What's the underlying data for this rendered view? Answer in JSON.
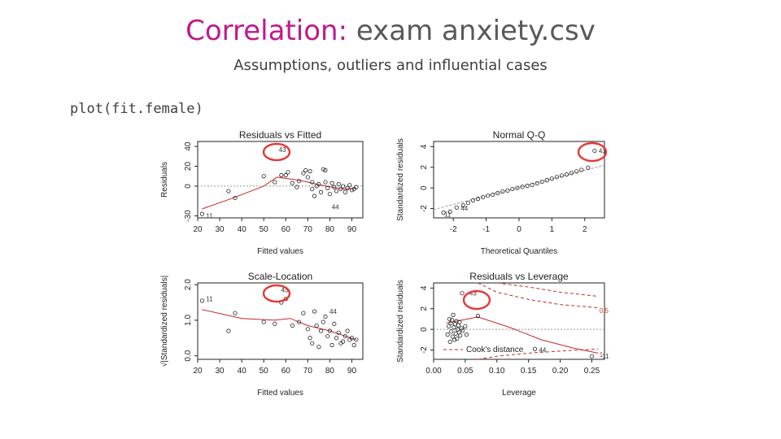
{
  "slide": {
    "title_prefix": "Correlation:",
    "title_rest": " exam anxiety.csv",
    "subtitle": "Assumptions, outliers and influential cases",
    "code": "plot(fit.female)"
  },
  "colors": {
    "title_accent": "#c0198e",
    "fit_line": "#c62828",
    "highlight": "#e53935",
    "refline": "#999999"
  },
  "chart_data": [
    {
      "type": "scatter",
      "title": "Residuals vs Fitted",
      "xlabel": "Fitted values",
      "ylabel": "Residuals",
      "xlim": [
        20,
        95
      ],
      "ylim": [
        -32,
        45
      ],
      "xticks": [
        20,
        30,
        40,
        50,
        60,
        70,
        80,
        90
      ],
      "yticks": [
        -30,
        0,
        20,
        40
      ],
      "points": [
        [
          22,
          -28
        ],
        [
          34,
          -5
        ],
        [
          37,
          -12
        ],
        [
          50,
          10
        ],
        [
          55,
          4
        ],
        [
          58,
          11
        ],
        [
          60,
          11
        ],
        [
          61,
          14
        ],
        [
          63,
          3
        ],
        [
          65,
          -1
        ],
        [
          66,
          5
        ],
        [
          68,
          13
        ],
        [
          69,
          16
        ],
        [
          70,
          9
        ],
        [
          71,
          15
        ],
        [
          72,
          4
        ],
        [
          72,
          -3
        ],
        [
          74,
          0
        ],
        [
          75,
          2
        ],
        [
          76,
          -6
        ],
        [
          77,
          17
        ],
        [
          78,
          4
        ],
        [
          79,
          -2
        ],
        [
          80,
          -8
        ],
        [
          81,
          3
        ],
        [
          82,
          -1
        ],
        [
          83,
          -5
        ],
        [
          84,
          2
        ],
        [
          85,
          -3
        ],
        [
          86,
          0
        ],
        [
          87,
          -6
        ],
        [
          88,
          -2
        ],
        [
          89,
          1
        ],
        [
          90,
          -4
        ],
        [
          91,
          -3
        ],
        [
          92,
          -1
        ],
        [
          78,
          16
        ],
        [
          73,
          -10
        ]
      ],
      "smooth": [
        [
          22,
          -23
        ],
        [
          36,
          -12
        ],
        [
          50,
          0
        ],
        [
          56,
          9
        ],
        [
          66,
          6
        ],
        [
          76,
          1
        ],
        [
          86,
          -3
        ],
        [
          92,
          -2
        ]
      ],
      "refline_y": 0,
      "labels": [
        {
          "text": "43",
          "x": 55,
          "y": 37
        },
        {
          "text": "11",
          "x": 22,
          "y": -30
        },
        {
          "text": "44",
          "x": 79,
          "y": -21
        }
      ]
    },
    {
      "type": "scatter",
      "title": "Normal Q-Q",
      "xlabel": "Theoretical Quantiles",
      "ylabel": "Standardized residuals",
      "xlim": [
        -2.6,
        2.6
      ],
      "ylim": [
        -2.9,
        4.5
      ],
      "xticks": [
        -2,
        -1,
        0,
        1,
        2
      ],
      "yticks": [
        -2,
        0,
        2,
        4
      ],
      "points": [
        [
          -2.3,
          -2.4
        ],
        [
          -2.1,
          -2.3
        ],
        [
          -1.9,
          -1.9
        ],
        [
          -1.7,
          -1.7
        ],
        [
          -1.55,
          -1.45
        ],
        [
          -1.4,
          -1.2
        ],
        [
          -1.25,
          -1.05
        ],
        [
          -1.1,
          -0.9
        ],
        [
          -0.95,
          -0.75
        ],
        [
          -0.8,
          -0.65
        ],
        [
          -0.65,
          -0.5
        ],
        [
          -0.5,
          -0.35
        ],
        [
          -0.35,
          -0.25
        ],
        [
          -0.2,
          -0.1
        ],
        [
          -0.05,
          0.0
        ],
        [
          0.1,
          0.1
        ],
        [
          0.25,
          0.2
        ],
        [
          0.4,
          0.3
        ],
        [
          0.55,
          0.45
        ],
        [
          0.7,
          0.6
        ],
        [
          0.85,
          0.75
        ],
        [
          1.0,
          0.9
        ],
        [
          1.15,
          1.05
        ],
        [
          1.3,
          1.2
        ],
        [
          1.45,
          1.3
        ],
        [
          1.6,
          1.45
        ],
        [
          1.75,
          1.6
        ],
        [
          1.9,
          1.75
        ],
        [
          2.1,
          1.95
        ],
        [
          2.3,
          3.6
        ]
      ],
      "refline": [
        [
          -2.6,
          -2.1
        ],
        [
          2.6,
          2.2
        ]
      ],
      "labels": [
        {
          "text": "43",
          "x": 2.3,
          "y": 3.6
        },
        {
          "text": "11",
          "x": -2.4,
          "y": -2.55
        },
        {
          "text": "44",
          "x": -1.9,
          "y": -1.95
        }
      ]
    },
    {
      "type": "scatter",
      "title": "Scale-Location",
      "xlabel": "Fitted values",
      "ylabel": "√|Standardized residuals|",
      "xlim": [
        20,
        95
      ],
      "ylim": [
        -0.1,
        2.05
      ],
      "xticks": [
        20,
        30,
        40,
        50,
        60,
        70,
        80,
        90
      ],
      "yticks": [
        0.0,
        1.0,
        2.0
      ],
      "points": [
        [
          22,
          1.55
        ],
        [
          34,
          0.7
        ],
        [
          37,
          1.2
        ],
        [
          50,
          0.95
        ],
        [
          55,
          0.9
        ],
        [
          58,
          1.5
        ],
        [
          60,
          1.6
        ],
        [
          63,
          0.85
        ],
        [
          66,
          0.95
        ],
        [
          68,
          1.2
        ],
        [
          70,
          0.75
        ],
        [
          71,
          0.5
        ],
        [
          72,
          0.35
        ],
        [
          73,
          1.25
        ],
        [
          74,
          0.85
        ],
        [
          75,
          0.25
        ],
        [
          76,
          0.7
        ],
        [
          77,
          0.95
        ],
        [
          78,
          1.1
        ],
        [
          79,
          0.55
        ],
        [
          80,
          0.7
        ],
        [
          81,
          0.3
        ],
        [
          82,
          0.9
        ],
        [
          83,
          0.5
        ],
        [
          84,
          0.65
        ],
        [
          85,
          0.35
        ],
        [
          86,
          0.4
        ],
        [
          87,
          0.55
        ],
        [
          88,
          0.7
        ],
        [
          89,
          0.45
        ],
        [
          90,
          0.5
        ],
        [
          91,
          0.3
        ],
        [
          92,
          0.45
        ]
      ],
      "smooth": [
        [
          22,
          1.3
        ],
        [
          40,
          1.05
        ],
        [
          55,
          1.0
        ],
        [
          62,
          1.05
        ],
        [
          70,
          0.85
        ],
        [
          80,
          0.7
        ],
        [
          92,
          0.45
        ]
      ],
      "labels": [
        {
          "text": "11",
          "x": 22,
          "y": 1.6
        },
        {
          "text": "43",
          "x": 56,
          "y": 1.85
        },
        {
          "text": "44",
          "x": 78,
          "y": 1.25
        }
      ]
    },
    {
      "type": "scatter",
      "title": "Residuals vs Leverage",
      "xlabel": "Leverage",
      "ylabel": "Standardized residuals",
      "xlim": [
        0,
        0.27
      ],
      "ylim": [
        -2.9,
        4.5
      ],
      "xticks": [
        0.0,
        0.05,
        0.1,
        0.15,
        0.2,
        0.25
      ],
      "xtick_labels": [
        "0.00",
        "0.05",
        "0.10",
        "0.15",
        "0.20",
        "0.25"
      ],
      "yticks": [
        -2,
        0,
        2,
        4
      ],
      "points": [
        [
          0.022,
          -0.5
        ],
        [
          0.024,
          0.3
        ],
        [
          0.025,
          1.0
        ],
        [
          0.026,
          -1.2
        ],
        [
          0.027,
          0.6
        ],
        [
          0.028,
          -0.2
        ],
        [
          0.029,
          0.9
        ],
        [
          0.03,
          -0.7
        ],
        [
          0.031,
          1.4
        ],
        [
          0.032,
          0.2
        ],
        [
          0.033,
          -1.0
        ],
        [
          0.034,
          0.5
        ],
        [
          0.035,
          -0.4
        ],
        [
          0.036,
          0.8
        ],
        [
          0.037,
          -0.9
        ],
        [
          0.038,
          0.0
        ],
        [
          0.039,
          0.4
        ],
        [
          0.04,
          -0.3
        ],
        [
          0.041,
          0.7
        ],
        [
          0.042,
          -0.6
        ],
        [
          0.044,
          0.1
        ],
        [
          0.046,
          -0.1
        ],
        [
          0.05,
          0.3
        ],
        [
          0.052,
          -0.5
        ],
        [
          0.07,
          1.3
        ],
        [
          0.16,
          -1.9
        ],
        [
          0.25,
          -2.6
        ],
        [
          0.045,
          3.5
        ]
      ],
      "smooth": [
        [
          0.02,
          0.6
        ],
        [
          0.07,
          1.2
        ],
        [
          0.12,
          0.2
        ],
        [
          0.17,
          -1.0
        ],
        [
          0.22,
          -1.8
        ],
        [
          0.26,
          -2.3
        ]
      ],
      "cook_upper": [
        [
          0.07,
          4.5
        ],
        [
          0.1,
          3.6
        ],
        [
          0.15,
          2.9
        ],
        [
          0.2,
          2.4
        ],
        [
          0.26,
          2.1
        ]
      ],
      "cook_upper2": [
        [
          0.1,
          4.5
        ],
        [
          0.15,
          4.1
        ],
        [
          0.2,
          3.6
        ],
        [
          0.26,
          3.2
        ]
      ],
      "cook_lower": [
        [
          0.07,
          -2.9
        ],
        [
          0.1,
          -2.6
        ],
        [
          0.15,
          -2.3
        ],
        [
          0.2,
          -2.1
        ],
        [
          0.26,
          -1.9
        ]
      ],
      "refline_y": 0,
      "labels": [
        {
          "text": "43",
          "x": 0.05,
          "y": 3.5
        },
        {
          "text": "44",
          "x": 0.16,
          "y": -2.0
        },
        {
          "text": "11",
          "x": 0.26,
          "y": -2.6
        }
      ],
      "cook_labels": [
        {
          "text": "0.5",
          "x": 0.262,
          "y": 1.6
        },
        {
          "text": "1",
          "x": 0.262,
          "y": -2.65
        }
      ],
      "legend": "Cook's distance"
    }
  ]
}
